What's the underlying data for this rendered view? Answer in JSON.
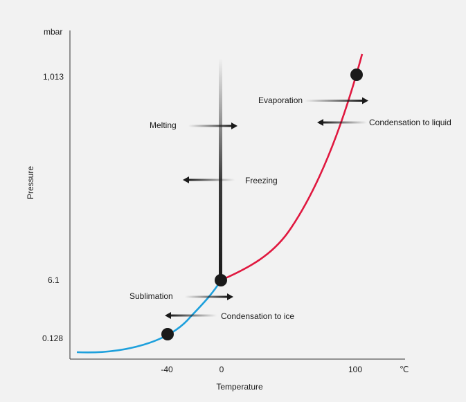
{
  "diagram": {
    "y_unit": "mbar",
    "x_unit": "℃",
    "y_axis_label": "Pressure",
    "x_axis_label": "Temperature",
    "y_ticks": [
      "1,013",
      "6.1",
      "0.128"
    ],
    "x_ticks": [
      "-40",
      "0",
      "100"
    ],
    "labels": {
      "evaporation": "Evaporation",
      "condensation_liquid": "Condensation to liquid",
      "melting": "Melting",
      "freezing": "Freezing",
      "sublimation": "Sublimation",
      "condensation_ice": "Condensation to ice"
    },
    "colors": {
      "liquid_gas_curve": "#e0183f",
      "solid_gas_curve": "#1ea0dc",
      "solid_liquid_line": "#1a1a1a",
      "background": "#f2f2f2"
    }
  }
}
